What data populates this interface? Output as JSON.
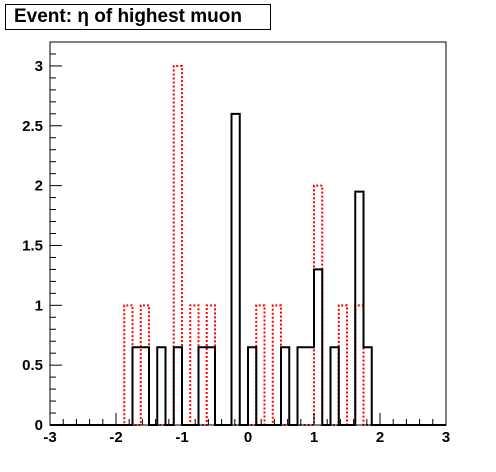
{
  "chart_data": {
    "type": "bar",
    "title": "Event: η of highest muon",
    "xlabel": "",
    "ylabel": "",
    "xlim": [
      -3,
      3
    ],
    "ylim": [
      0,
      3.2
    ],
    "xticks": [
      "-3",
      "-2",
      "-1",
      "0",
      "1",
      "2",
      "3"
    ],
    "yticks": [
      "0",
      "0.5",
      "1",
      "1.5",
      "2",
      "2.5",
      "3"
    ],
    "bin_edges": [
      -3.0,
      -2.875,
      -2.75,
      -2.625,
      -2.5,
      -2.375,
      -2.25,
      -2.125,
      -2.0,
      -1.875,
      -1.75,
      -1.625,
      -1.5,
      -1.375,
      -1.25,
      -1.125,
      -1.0,
      -0.875,
      -0.75,
      -0.625,
      -0.5,
      -0.375,
      -0.25,
      -0.125,
      0.0,
      0.125,
      0.25,
      0.375,
      0.5,
      0.625,
      0.75,
      0.875,
      1.0,
      1.125,
      1.25,
      1.375,
      1.5,
      1.625,
      1.75,
      1.875,
      2.0,
      2.125,
      2.25,
      2.375,
      2.5,
      2.625,
      2.75,
      2.875,
      3.0
    ],
    "series": [
      {
        "color": "#000000",
        "style": "solid",
        "values": [
          0,
          0,
          0,
          0,
          0,
          0,
          0,
          0,
          0,
          0,
          0.65,
          0.65,
          0,
          0.65,
          0,
          0.65,
          0,
          0,
          0.65,
          0.65,
          0,
          0,
          2.6,
          0,
          0.65,
          0,
          0,
          0,
          0.65,
          0,
          0.65,
          0.65,
          1.3,
          0,
          0.65,
          0,
          0,
          1.95,
          0.65,
          0,
          0,
          0,
          0,
          0,
          0,
          0,
          0,
          0
        ]
      },
      {
        "color": "#ff0000",
        "style": "dotted",
        "values": [
          0,
          0,
          0,
          0,
          0,
          0,
          0,
          0,
          0,
          1,
          0,
          1,
          0,
          0,
          0,
          3,
          0,
          1,
          0,
          1,
          0,
          0,
          0,
          0,
          0,
          1,
          0,
          1,
          0,
          0,
          0,
          0,
          2,
          0,
          0,
          1,
          0,
          1,
          0,
          0,
          0,
          0,
          0,
          0,
          0,
          0,
          0,
          0
        ]
      }
    ],
    "grid": false,
    "legend": "none"
  }
}
